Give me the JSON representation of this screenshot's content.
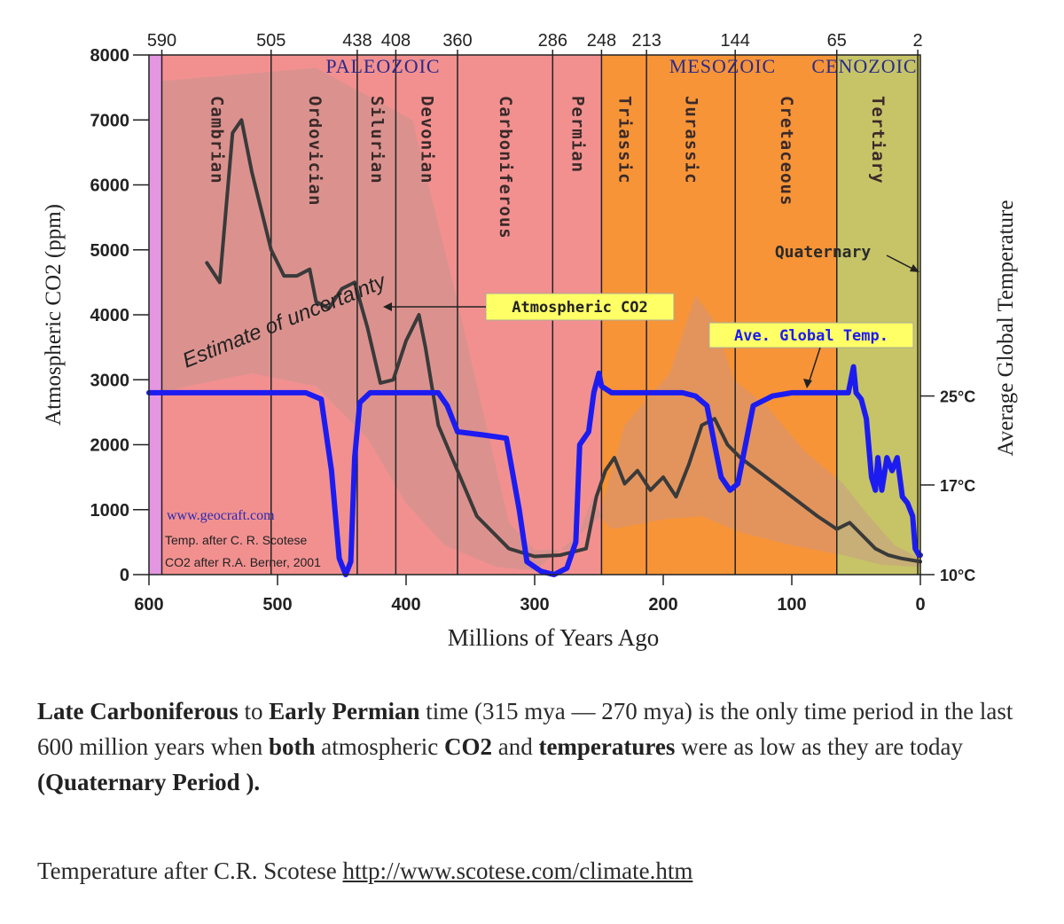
{
  "chart_data": {
    "type": "line",
    "y_label_left": "Atmospheric CO2 (ppm)",
    "y_label_right": "Average Global Temperature",
    "x_label": "Millions of Years Ago",
    "x_range": [
      600,
      0
    ],
    "y_range": [
      0,
      8000
    ],
    "x_ticks": [
      "600",
      "500",
      "400",
      "300",
      "200",
      "100",
      "0"
    ],
    "y_ticks": [
      "0",
      "1000",
      "2000",
      "3000",
      "4000",
      "5000",
      "6000",
      "7000",
      "8000"
    ],
    "top_ticks": [
      "590",
      "505",
      "438",
      "408",
      "360",
      "286",
      "248",
      "213",
      "144",
      "65",
      "2"
    ],
    "right_ticks": [
      {
        "label": "10°C",
        "ppm": 0
      },
      {
        "label": "17°C",
        "ppm": 1380
      },
      {
        "label": "25°C",
        "ppm": 2750
      }
    ],
    "eras": [
      {
        "name": "PALEOZOIC",
        "from": 590,
        "to": 248
      },
      {
        "name": "MESOZOIC",
        "from": 248,
        "to": 65
      },
      {
        "name": "CENOZOIC",
        "from": 65,
        "to": 0
      }
    ],
    "periods": [
      {
        "name": "Cambrian",
        "from": 590,
        "to": 505,
        "color": "#f29090"
      },
      {
        "name": "Ordovician",
        "from": 505,
        "to": 438,
        "color": "#f29090"
      },
      {
        "name": "Silurian",
        "from": 438,
        "to": 408,
        "color": "#f29090"
      },
      {
        "name": "Devonian",
        "from": 408,
        "to": 360,
        "color": "#f29090"
      },
      {
        "name": "Carboniferous",
        "from": 360,
        "to": 286,
        "color": "#f29090"
      },
      {
        "name": "Permian",
        "from": 286,
        "to": 248,
        "color": "#f29090"
      },
      {
        "name": "Triassic",
        "from": 248,
        "to": 213,
        "color": "#f79437"
      },
      {
        "name": "Jurassic",
        "from": 213,
        "to": 144,
        "color": "#f79437"
      },
      {
        "name": "Cretaceous",
        "from": 144,
        "to": 65,
        "color": "#f79437"
      },
      {
        "name": "Tertiary",
        "from": 65,
        "to": 2,
        "color": "#c6c467"
      }
    ],
    "series": [
      {
        "name": "Atmospheric CO2",
        "color": "#3a3a3a",
        "points": [
          [
            555,
            4800
          ],
          [
            545,
            4500
          ],
          [
            535,
            6800
          ],
          [
            528,
            7000
          ],
          [
            520,
            6200
          ],
          [
            505,
            5000
          ],
          [
            495,
            4600
          ],
          [
            485,
            4600
          ],
          [
            475,
            4700
          ],
          [
            470,
            4200
          ],
          [
            460,
            4100
          ],
          [
            450,
            4400
          ],
          [
            440,
            4500
          ],
          [
            430,
            3800
          ],
          [
            420,
            2950
          ],
          [
            410,
            3000
          ],
          [
            400,
            3600
          ],
          [
            390,
            4000
          ],
          [
            385,
            3500
          ],
          [
            375,
            2300
          ],
          [
            360,
            1600
          ],
          [
            345,
            900
          ],
          [
            320,
            400
          ],
          [
            300,
            280
          ],
          [
            280,
            300
          ],
          [
            260,
            400
          ],
          [
            252,
            1200
          ],
          [
            245,
            1600
          ],
          [
            238,
            1800
          ],
          [
            230,
            1400
          ],
          [
            220,
            1600
          ],
          [
            210,
            1300
          ],
          [
            200,
            1500
          ],
          [
            190,
            1200
          ],
          [
            180,
            1700
          ],
          [
            170,
            2300
          ],
          [
            160,
            2400
          ],
          [
            150,
            2000
          ],
          [
            140,
            1800
          ],
          [
            120,
            1500
          ],
          [
            100,
            1200
          ],
          [
            80,
            900
          ],
          [
            65,
            700
          ],
          [
            55,
            800
          ],
          [
            45,
            600
          ],
          [
            35,
            400
          ],
          [
            25,
            300
          ],
          [
            15,
            250
          ],
          [
            0,
            200
          ]
        ]
      },
      {
        "name": "Ave. Global Temp.",
        "color": "#1c1cf0",
        "points": [
          [
            600,
            2800
          ],
          [
            530,
            2800
          ],
          [
            478,
            2800
          ],
          [
            466,
            2700
          ],
          [
            458,
            1600
          ],
          [
            452,
            250
          ],
          [
            447,
            0
          ],
          [
            443,
            200
          ],
          [
            440,
            1800
          ],
          [
            436,
            2650
          ],
          [
            428,
            2800
          ],
          [
            375,
            2800
          ],
          [
            368,
            2600
          ],
          [
            360,
            2200
          ],
          [
            340,
            2150
          ],
          [
            322,
            2100
          ],
          [
            312,
            1000
          ],
          [
            306,
            200
          ],
          [
            295,
            50
          ],
          [
            285,
            0
          ],
          [
            275,
            100
          ],
          [
            268,
            500
          ],
          [
            265,
            2000
          ],
          [
            258,
            2200
          ],
          [
            254,
            2800
          ],
          [
            250,
            3100
          ],
          [
            248,
            2900
          ],
          [
            240,
            2800
          ],
          [
            185,
            2800
          ],
          [
            175,
            2750
          ],
          [
            166,
            2600
          ],
          [
            160,
            2000
          ],
          [
            155,
            1500
          ],
          [
            148,
            1300
          ],
          [
            142,
            1400
          ],
          [
            136,
            2000
          ],
          [
            130,
            2600
          ],
          [
            115,
            2750
          ],
          [
            100,
            2800
          ],
          [
            70,
            2800
          ],
          [
            56,
            2800
          ],
          [
            52,
            3200
          ],
          [
            50,
            2800
          ],
          [
            46,
            2700
          ],
          [
            42,
            2400
          ],
          [
            38,
            1500
          ],
          [
            35,
            1300
          ],
          [
            33,
            1800
          ],
          [
            30,
            1300
          ],
          [
            26,
            1800
          ],
          [
            22,
            1600
          ],
          [
            18,
            1800
          ],
          [
            14,
            1200
          ],
          [
            10,
            1100
          ],
          [
            6,
            900
          ],
          [
            4,
            400
          ],
          [
            1,
            300
          ],
          [
            0,
            300
          ]
        ]
      }
    ],
    "annotations": {
      "uncertainty": "Estimate of uncertainty",
      "co2_label": "Atmospheric CO2",
      "temp_label": "Ave. Global Temp.",
      "quaternary": "Quaternary",
      "credit_site": "www.geocraft.com",
      "credit_temp": "Temp. after C. R. Scotese",
      "credit_co2": "CO2 after R.A. Berner, 2001"
    },
    "colors": {
      "cambrian_edge": "#e497e0",
      "uncertainty": "#c9948c",
      "blue": "#1c1cf0",
      "black": "#3a3a3a"
    }
  },
  "caption": {
    "part1": "Late Carboniferous",
    "part2": " to ",
    "part3": "Early Permian",
    "part4": " time (315 mya — 270 mya) is the only time period in the last 600 million years when ",
    "part5": "both",
    "part6": " atmospheric ",
    "part7": "CO2",
    "part8": " and ",
    "part9": "temperatures",
    "part10": " were as low as they are today ",
    "part11": "(Quaternary Period ).",
    "source_prefix": "Temperature after C.R. Scotese ",
    "source_link": "http://www.scotese.com/climate.htm"
  }
}
